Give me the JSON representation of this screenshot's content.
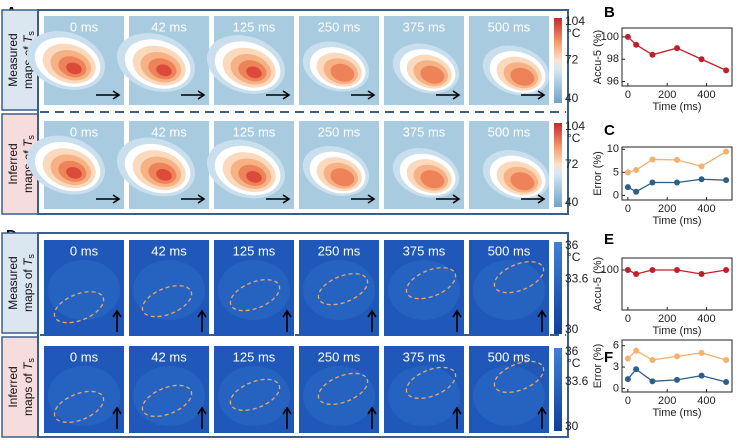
{
  "panel_letters": [
    "A",
    "B",
    "C",
    "D",
    "E",
    "F"
  ],
  "map_sections": [
    {
      "rows": [
        {
          "line1": "Measured",
          "line2": "maps of ",
          "var": "T",
          "sub": "s"
        },
        {
          "line1": "Inferred",
          "line2": "maps of ",
          "var": "T",
          "sub": "s"
        }
      ],
      "times": [
        "0 ms",
        "42 ms",
        "125 ms",
        "250 ms",
        "375 ms",
        "500 ms"
      ],
      "colorbar": {
        "ticks": [
          104,
          72,
          40
        ],
        "unit": "°C"
      }
    },
    {
      "rows": [
        {
          "line1": "Measured",
          "line2": "maps of ",
          "var": "T",
          "sub": "s"
        },
        {
          "line1": "Inferred",
          "line2": "maps of ",
          "var": "T",
          "sub": "s"
        }
      ],
      "times": [
        "0 ms",
        "42 ms",
        "125 ms",
        "250 ms",
        "375 ms",
        "500 ms"
      ],
      "colorbar": {
        "ticks": [
          36,
          33.6,
          30
        ],
        "unit": "°C"
      }
    }
  ],
  "chart_data": [
    {
      "type": "line",
      "xlabel": "Time (ms)",
      "ylabel": "Accu-5 (%)",
      "x": [
        0,
        42,
        125,
        250,
        375,
        500
      ],
      "xlim": [
        -30,
        530
      ],
      "xticks": [
        0,
        200,
        400
      ],
      "ylim": [
        95.6,
        100.8
      ],
      "yticks": [
        96,
        98,
        100
      ],
      "series": [
        {
          "color": "#c0202a",
          "values": [
            100,
            99.3,
            98.4,
            99,
            98,
            97
          ]
        }
      ]
    },
    {
      "type": "line",
      "xlabel": "Time (ms)",
      "ylabel": "Error (%)",
      "x": [
        0,
        42,
        125,
        250,
        375,
        500
      ],
      "xlim": [
        -30,
        530
      ],
      "xticks": [
        0,
        200,
        400
      ],
      "ylim": [
        -1,
        10.5
      ],
      "yticks": [
        0,
        5,
        10
      ],
      "series": [
        {
          "color": "#f5b06e",
          "values": [
            5,
            5.5,
            7.8,
            7.7,
            6.3,
            9.5
          ]
        },
        {
          "color": "#2e5f86",
          "values": [
            1.8,
            0.8,
            2.8,
            2.8,
            3.5,
            3.3
          ]
        }
      ]
    },
    {
      "type": "line",
      "xlabel": "Time (ms)",
      "ylabel": "Accu-5 (%)",
      "x": [
        0,
        42,
        125,
        250,
        375,
        500
      ],
      "xlim": [
        -30,
        530
      ],
      "xticks": [
        0,
        200,
        400
      ],
      "ylim": [
        95,
        101.5
      ],
      "yticks": [
        100
      ],
      "series": [
        {
          "color": "#c0202a",
          "values": [
            100,
            99.5,
            100,
            100,
            99.5,
            100
          ]
        }
      ]
    },
    {
      "type": "line",
      "xlabel": "Time (ms)",
      "ylabel": "Error (%)",
      "x": [
        0,
        42,
        125,
        250,
        375,
        500
      ],
      "xlim": [
        -30,
        530
      ],
      "xticks": [
        0,
        200,
        400
      ],
      "ylim": [
        -0.5,
        6.8
      ],
      "yticks": [
        0,
        3,
        6
      ],
      "series": [
        {
          "color": "#f5b06e",
          "values": [
            4.2,
            5.3,
            4,
            4.5,
            5,
            4
          ]
        },
        {
          "color": "#2e5f86",
          "values": [
            1.3,
            2.7,
            1,
            1.2,
            1.8,
            0.9
          ]
        }
      ]
    }
  ]
}
